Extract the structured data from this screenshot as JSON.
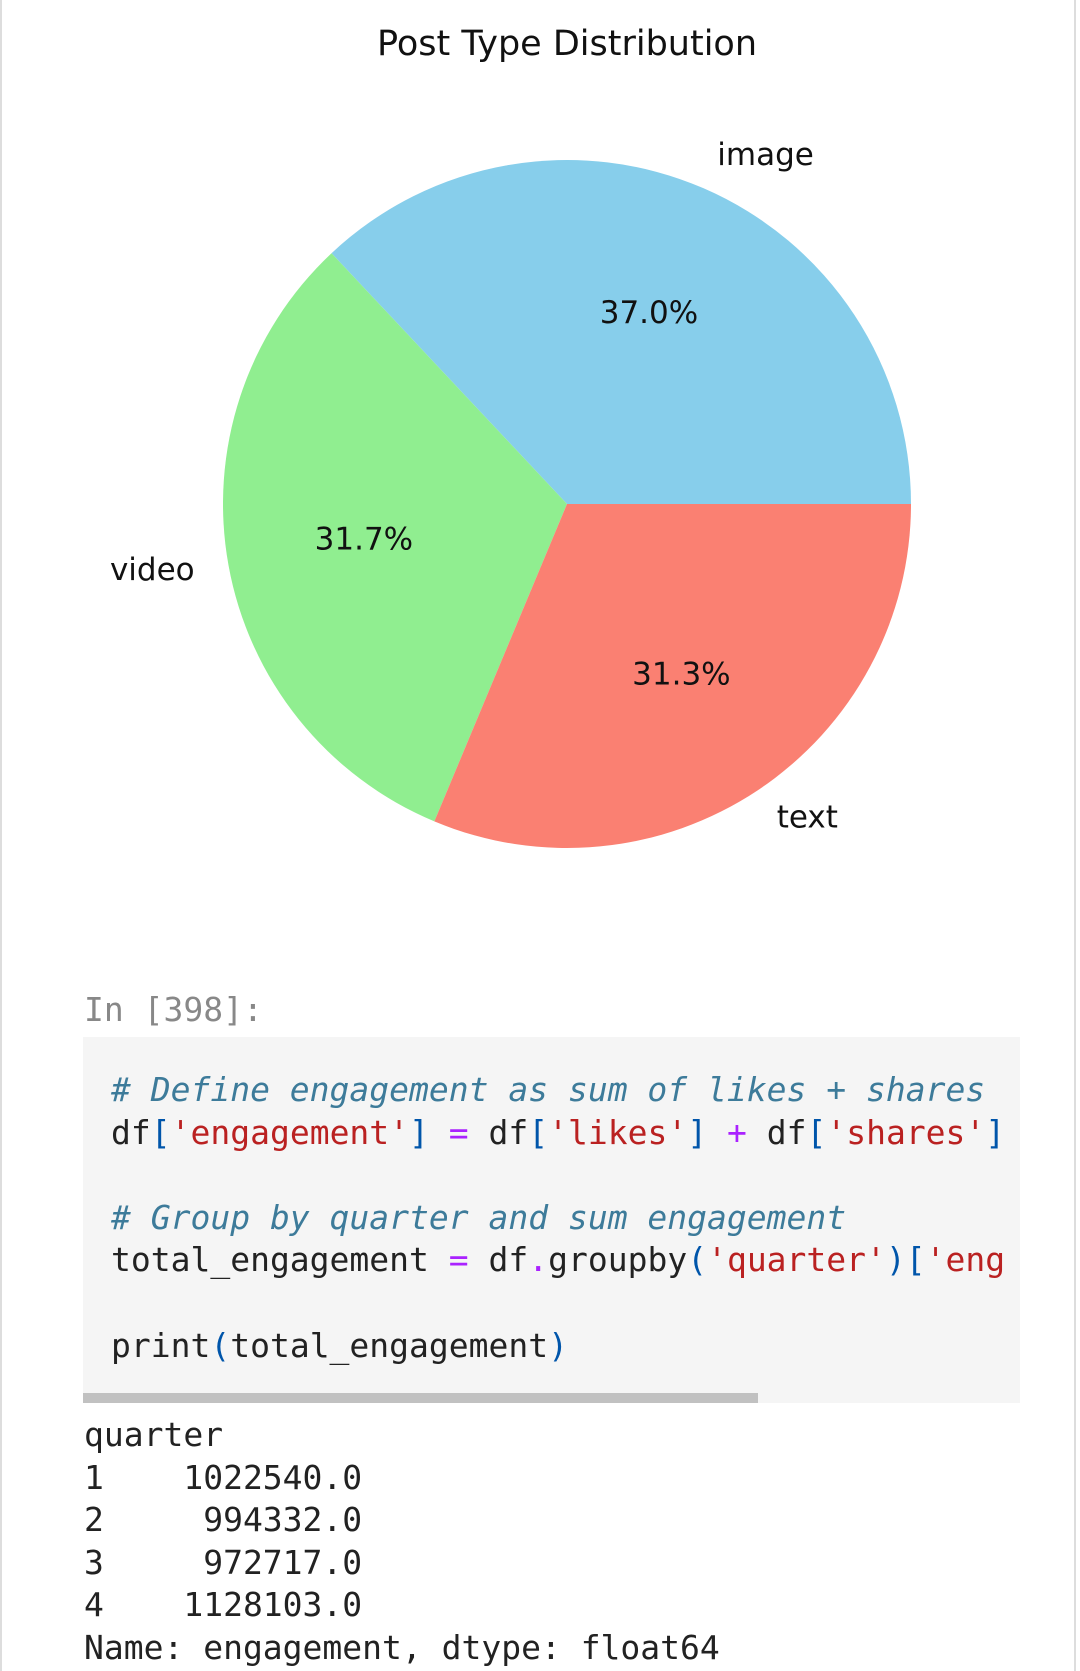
{
  "chart_data": {
    "type": "pie",
    "title": "Post Type Distribution",
    "categories": [
      "image",
      "video",
      "text"
    ],
    "values": [
      37.0,
      31.7,
      31.3
    ],
    "value_labels": [
      "37.0%",
      "31.7%",
      "31.3%"
    ],
    "colors": [
      "#87ceeb",
      "#90ee90",
      "#fa8072"
    ]
  },
  "cell": {
    "prompt": "In [398]:",
    "code": [
      "# Define engagement as sum of likes + shares",
      "df['engagement'] = df['likes'] + df['shares']",
      "",
      "# Group by quarter and sum engagement",
      "total_engagement = df.groupby('quarter')['eng",
      "",
      "print(total_engagement)"
    ]
  },
  "output": [
    "quarter",
    "1    1022540.0",
    "2     994332.0",
    "3     972717.0",
    "4    1128103.0",
    "Name: engagement, dtype: float64"
  ]
}
